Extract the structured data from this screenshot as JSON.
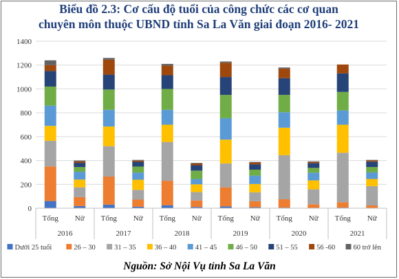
{
  "title_line1": "Biểu đồ 2.3: Cơ cấu độ tuổi của công chức các cơ quan",
  "title_line2": "chuyên môn thuộc UBND tỉnh Sa La Văn giai đoạn 2016- 2021",
  "source": "Nguồn: Sở Nội Vụ tỉnh Sa La Văn",
  "chart_data": {
    "type": "bar",
    "stacked": true,
    "title": "Biểu đồ 2.3: Cơ cấu độ tuổi của công chức các cơ quan chuyên môn thuộc UBND tỉnh Sa La Văn giai đoạn 2016- 2021",
    "groups": [
      "2016",
      "2017",
      "2018",
      "2019",
      "2020",
      "2021"
    ],
    "categories": [
      "Tổng",
      "Nữ",
      "Tổng",
      "Nữ",
      "Tổng",
      "Nữ",
      "Tổng",
      "Nữ",
      "Tổng",
      "Nữ",
      "Tổng",
      "Nữ"
    ],
    "ylim": [
      0,
      1400
    ],
    "yticks": [
      0,
      200,
      400,
      600,
      800,
      1000,
      1200,
      1400
    ],
    "grid": true,
    "legend_position": "bottom",
    "series": [
      {
        "name": "Dưới 25 tuổi",
        "color": "#4472c4",
        "values": [
          60,
          18,
          30,
          12,
          25,
          10,
          15,
          8,
          5,
          3,
          5,
          3
        ]
      },
      {
        "name": "26 – 30",
        "color": "#ed7d31",
        "values": [
          290,
          75,
          235,
          60,
          205,
          55,
          160,
          50,
          70,
          30,
          45,
          20
        ]
      },
      {
        "name": "31 – 35",
        "color": "#a5a5a5",
        "values": [
          215,
          82,
          255,
          82,
          325,
          70,
          200,
          75,
          370,
          125,
          415,
          162
        ]
      },
      {
        "name": "36 – 40",
        "color": "#ffc000",
        "values": [
          125,
          65,
          165,
          85,
          145,
          65,
          200,
          70,
          230,
          75,
          235,
          60
        ]
      },
      {
        "name": "41 – 45",
        "color": "#5b9bd5",
        "values": [
          170,
          65,
          140,
          60,
          125,
          45,
          180,
          70,
          130,
          65,
          120,
          55
        ]
      },
      {
        "name": "46 – 50",
        "color": "#70ad47",
        "values": [
          160,
          40,
          170,
          50,
          175,
          70,
          195,
          50,
          145,
          40,
          155,
          45
        ]
      },
      {
        "name": "51 – 55",
        "color": "#264478",
        "values": [
          130,
          35,
          125,
          40,
          115,
          45,
          150,
          45,
          140,
          40,
          155,
          45
        ]
      },
      {
        "name": "56 -60",
        "color": "#9e480e",
        "values": [
          50,
          12,
          125,
          10,
          80,
          15,
          120,
          15,
          80,
          10,
          75,
          10
        ]
      },
      {
        "name": "60 trở lên",
        "color": "#636363",
        "values": [
          40,
          8,
          15,
          6,
          15,
          5,
          10,
          5,
          10,
          5,
          0,
          5
        ]
      }
    ]
  }
}
